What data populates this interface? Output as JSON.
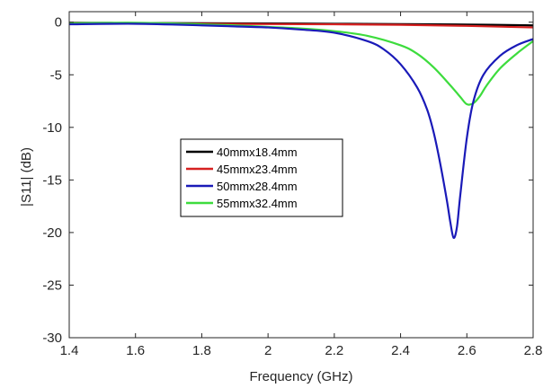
{
  "chart_data": {
    "type": "line",
    "title": "",
    "xlabel": "Frequency (GHz)",
    "ylabel": "|S11| (dB)",
    "xlim": [
      1.4,
      2.8
    ],
    "ylim": [
      -30,
      1
    ],
    "xticks": [
      "1.4",
      "1.6",
      "1.8",
      "2",
      "2.2",
      "2.4",
      "2.6",
      "2.8"
    ],
    "xtick_values": [
      1.4,
      1.6,
      1.8,
      2.0,
      2.2,
      2.4,
      2.6,
      2.8
    ],
    "yticks": [
      "0",
      "-5",
      "-10",
      "-15",
      "-20",
      "-25",
      "-30"
    ],
    "ytick_values": [
      0,
      -5,
      -10,
      -15,
      -20,
      -25,
      -30
    ],
    "grid": false,
    "legend_position": "center-left",
    "series": [
      {
        "name": "40mmx18.4mm",
        "color": "#000000",
        "x": [
          1.4,
          1.6,
          1.8,
          2.0,
          2.2,
          2.4,
          2.6,
          2.8
        ],
        "y": [
          -0.05,
          -0.08,
          -0.1,
          -0.12,
          -0.15,
          -0.18,
          -0.22,
          -0.3
        ]
      },
      {
        "name": "45mmx23.4mm",
        "color": "#d62020",
        "x": [
          1.4,
          1.6,
          1.8,
          2.0,
          2.2,
          2.4,
          2.6,
          2.8
        ],
        "y": [
          -0.1,
          -0.12,
          -0.15,
          -0.18,
          -0.2,
          -0.25,
          -0.35,
          -0.5
        ]
      },
      {
        "name": "50mmx28.4mm",
        "color": "#1a1ab8",
        "x": [
          1.4,
          1.6,
          1.8,
          1.9,
          2.0,
          2.1,
          2.2,
          2.3,
          2.35,
          2.4,
          2.45,
          2.48,
          2.5,
          2.52,
          2.54,
          2.55,
          2.56,
          2.57,
          2.58,
          2.6,
          2.62,
          2.65,
          2.7,
          2.75,
          2.8
        ],
        "y": [
          -0.2,
          -0.15,
          -0.3,
          -0.4,
          -0.5,
          -0.7,
          -1.0,
          -1.8,
          -2.6,
          -4.0,
          -6.2,
          -8.3,
          -10.5,
          -13.5,
          -17.0,
          -19.0,
          -20.5,
          -19.5,
          -16.5,
          -11.0,
          -7.5,
          -5.0,
          -3.2,
          -2.2,
          -1.6
        ]
      },
      {
        "name": "55mmx32.4mm",
        "color": "#3ddc3d",
        "x": [
          1.4,
          1.6,
          1.8,
          1.9,
          2.0,
          2.1,
          2.2,
          2.3,
          2.4,
          2.45,
          2.5,
          2.55,
          2.58,
          2.6,
          2.62,
          2.64,
          2.66,
          2.7,
          2.75,
          2.8
        ],
        "y": [
          -0.1,
          -0.05,
          -0.2,
          -0.3,
          -0.45,
          -0.6,
          -0.85,
          -1.3,
          -2.2,
          -3.0,
          -4.3,
          -6.0,
          -7.1,
          -7.8,
          -7.7,
          -7.0,
          -6.0,
          -4.4,
          -3.0,
          -1.8
        ]
      }
    ]
  },
  "colors": {
    "axis": "#262626",
    "background": "#ffffff",
    "legend_border": "#000000"
  }
}
